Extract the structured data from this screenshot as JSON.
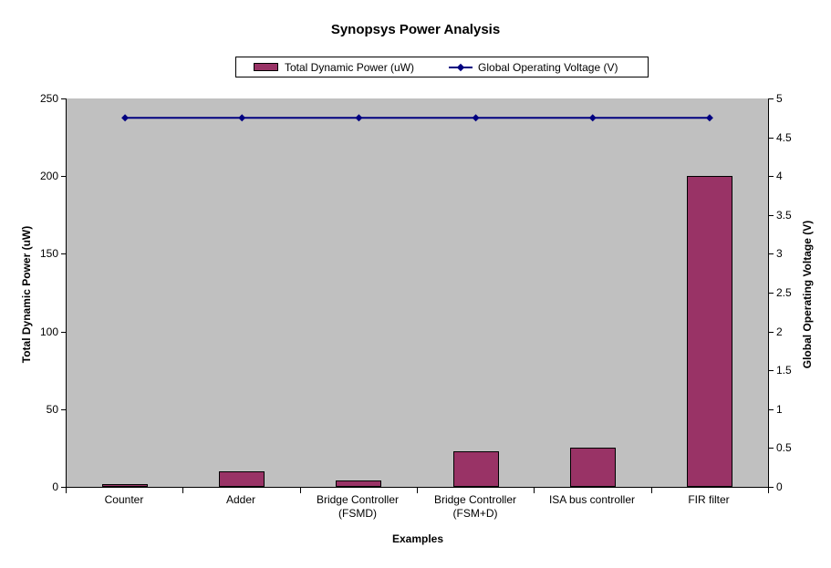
{
  "chart_data": {
    "type": "combo-bar-line",
    "title": "Synopsys Power Analysis",
    "xlabel": "Examples",
    "ylabel_left": "Total Dynamic Power (uW)",
    "ylabel_right": "Global Operating Voltage (V)",
    "categories": [
      "Counter",
      "Adder",
      "Bridge Controller (FSMD)",
      "Bridge Controller (FSM+D)",
      "ISA bus controller",
      "FIR filter"
    ],
    "series": [
      {
        "name": "Total Dynamic Power (uW)",
        "type": "bar",
        "axis": "left",
        "color": "#993366",
        "values": [
          2,
          10,
          4,
          23,
          25,
          200
        ]
      },
      {
        "name": "Global Operating Voltage (V)",
        "type": "line",
        "axis": "right",
        "color": "#000080",
        "marker": "diamond",
        "values": [
          4.75,
          4.75,
          4.75,
          4.75,
          4.75,
          4.75
        ]
      }
    ],
    "ylim_left": [
      0,
      250
    ],
    "ytick_step_left": 50,
    "ylim_right": [
      0,
      5
    ],
    "ytick_step_right": 0.5,
    "ytick_labels_left": [
      "0",
      "50",
      "100",
      "150",
      "200",
      "250"
    ],
    "ytick_labels_right": [
      "0",
      "0.5",
      "1",
      "1.5",
      "2",
      "2.5",
      "3",
      "3.5",
      "4",
      "4.5",
      "5"
    ],
    "plot_background": "#C0C0C0",
    "grid": false,
    "legend_position": "top"
  }
}
